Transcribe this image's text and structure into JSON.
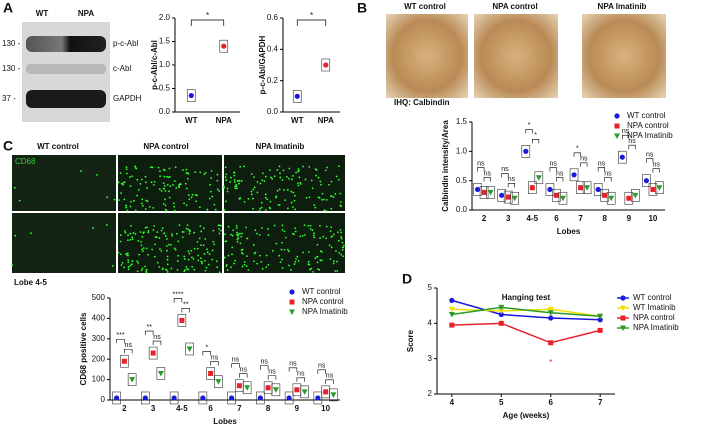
{
  "panel_labels": [
    "A",
    "B",
    "C",
    "D"
  ],
  "blot": {
    "columns": [
      "WT",
      "NPA"
    ],
    "markers": [
      "130 -",
      "130 -",
      "37 -"
    ],
    "proteins": [
      "p-c-Abl",
      "c-Abl",
      "GAPDH"
    ]
  },
  "calbindin_images": {
    "titles": [
      "WT control",
      "NPA control",
      "NPA Imatinib"
    ],
    "caption": "IHQ: Calbindin"
  },
  "cd68_images": {
    "titles": [
      "WT control",
      "NPA control",
      "NPA Imatinib"
    ],
    "stain": "CD68",
    "caption": "Lobe 4-5"
  },
  "chart_data": [
    {
      "type": "box",
      "ylabel": "p-c-Abl/c-Abl",
      "categories": [
        "WT",
        "NPA"
      ],
      "colors": [
        "#1a1adf",
        "#e8202a"
      ],
      "series": [
        {
          "values": [
            0.35,
            1.4
          ]
        }
      ],
      "ylim": [
        0,
        2
      ],
      "yticks": [
        {
          "value": 0,
          "label": "0.0"
        },
        {
          "value": 0.5,
          "label": "0.5"
        },
        {
          "value": 1,
          "label": "1.0"
        },
        {
          "value": 1.5,
          "label": "1.5"
        },
        {
          "value": 2,
          "label": "2.0"
        }
      ],
      "significance": [
        "*"
      ]
    },
    {
      "type": "box",
      "ylabel": "p-c-Abl/GAPDH",
      "categories": [
        "WT",
        "NPA"
      ],
      "colors": [
        "#1a1adf",
        "#e8202a"
      ],
      "series": [
        {
          "values": [
            0.1,
            0.3
          ]
        }
      ],
      "ylim": [
        0,
        0.6
      ],
      "yticks": [
        {
          "value": 0,
          "label": "0.0"
        },
        {
          "value": 0.2,
          "label": "0.2"
        },
        {
          "value": 0.4,
          "label": "0.4"
        },
        {
          "value": 0.6,
          "label": "0.6"
        }
      ],
      "significance": [
        "*"
      ]
    },
    {
      "type": "box",
      "ylabel": "Calbindin intensity/Area",
      "xlabel": "Lobes",
      "legend": "upper right",
      "categories": [
        "2",
        "3",
        "4-5",
        "6",
        "7",
        "8",
        "9",
        "10"
      ],
      "series": [
        {
          "name": "WT control",
          "color": "#1a1adf",
          "marker": "circle",
          "values": [
            0.35,
            0.25,
            1.0,
            0.35,
            0.6,
            0.35,
            0.9,
            0.5
          ]
        },
        {
          "name": "NPA control",
          "color": "#e8202a",
          "marker": "square",
          "values": [
            0.3,
            0.22,
            0.38,
            0.25,
            0.38,
            0.25,
            0.2,
            0.35
          ]
        },
        {
          "name": "NPA Imatinib",
          "color": "#2a9a2a",
          "marker": "triangle",
          "values": [
            0.3,
            0.2,
            0.55,
            0.2,
            0.38,
            0.2,
            0.25,
            0.38
          ]
        }
      ],
      "ylim": [
        0,
        1.5
      ],
      "yticks": [
        {
          "value": 0,
          "label": "0.0"
        },
        {
          "value": 0.5,
          "label": "0.5"
        },
        {
          "value": 1,
          "label": "1.0"
        },
        {
          "value": 1.5,
          "label": "1.5"
        }
      ],
      "significance": [
        [
          "ns",
          "ns",
          "*",
          "ns",
          "*",
          "ns",
          "ns",
          "ns"
        ],
        [
          "ns",
          "ns",
          "*",
          "ns",
          "ns",
          "ns",
          "ns",
          "ns"
        ]
      ]
    },
    {
      "type": "box",
      "ylabel": "CD68 positive cells",
      "xlabel": "Lobes",
      "legend": "upper right",
      "categories": [
        "2",
        "3",
        "4-5",
        "6",
        "7",
        "8",
        "9",
        "10"
      ],
      "series": [
        {
          "name": "WT control",
          "color": "#1a1adf",
          "marker": "circle",
          "values": [
            10,
            10,
            10,
            10,
            10,
            10,
            10,
            10
          ]
        },
        {
          "name": "NPA control",
          "color": "#e8202a",
          "marker": "square",
          "values": [
            190,
            230,
            390,
            130,
            70,
            60,
            50,
            40
          ]
        },
        {
          "name": "NPA Imatinib",
          "color": "#2a9a2a",
          "marker": "triangle",
          "values": [
            100,
            130,
            250,
            90,
            60,
            50,
            40,
            25
          ]
        }
      ],
      "ylim": [
        0,
        500
      ],
      "yticks": [
        0,
        100,
        200,
        300,
        400,
        500
      ],
      "significance": [
        [
          "***",
          "**",
          "****",
          "*",
          "ns",
          "ns",
          "ns",
          "ns"
        ],
        [
          "ns",
          "ns",
          "**",
          "ns",
          "ns",
          "ns",
          "ns",
          "ns"
        ]
      ]
    },
    {
      "type": "line",
      "title": "Hanging test",
      "ylabel": "Score",
      "xlabel": "Age (weeks)",
      "legend": "right",
      "x": [
        4,
        5,
        6,
        7
      ],
      "xlim": [
        3.7,
        7.3
      ],
      "xticks": [
        4,
        5,
        6,
        7
      ],
      "ylim": [
        2,
        5
      ],
      "yticks": [
        2,
        3,
        4,
        5
      ],
      "series": [
        {
          "name": "WT control",
          "color": "#1a1adf",
          "marker": "circle",
          "values": [
            4.65,
            4.25,
            4.15,
            4.1
          ]
        },
        {
          "name": "WT Imatinib",
          "color": "#f0e000",
          "marker": "triangle",
          "values": [
            4.4,
            4.35,
            4.4,
            4.2
          ]
        },
        {
          "name": "NPA control",
          "color": "#e8202a",
          "marker": "square",
          "values": [
            3.95,
            4.0,
            3.45,
            3.8
          ]
        },
        {
          "name": "NPA Imatinib",
          "color": "#2a9a2a",
          "marker": "triangle",
          "values": [
            4.25,
            4.45,
            4.3,
            4.2
          ]
        }
      ],
      "significance": [
        [
          null,
          null,
          "*",
          null
        ]
      ]
    }
  ]
}
